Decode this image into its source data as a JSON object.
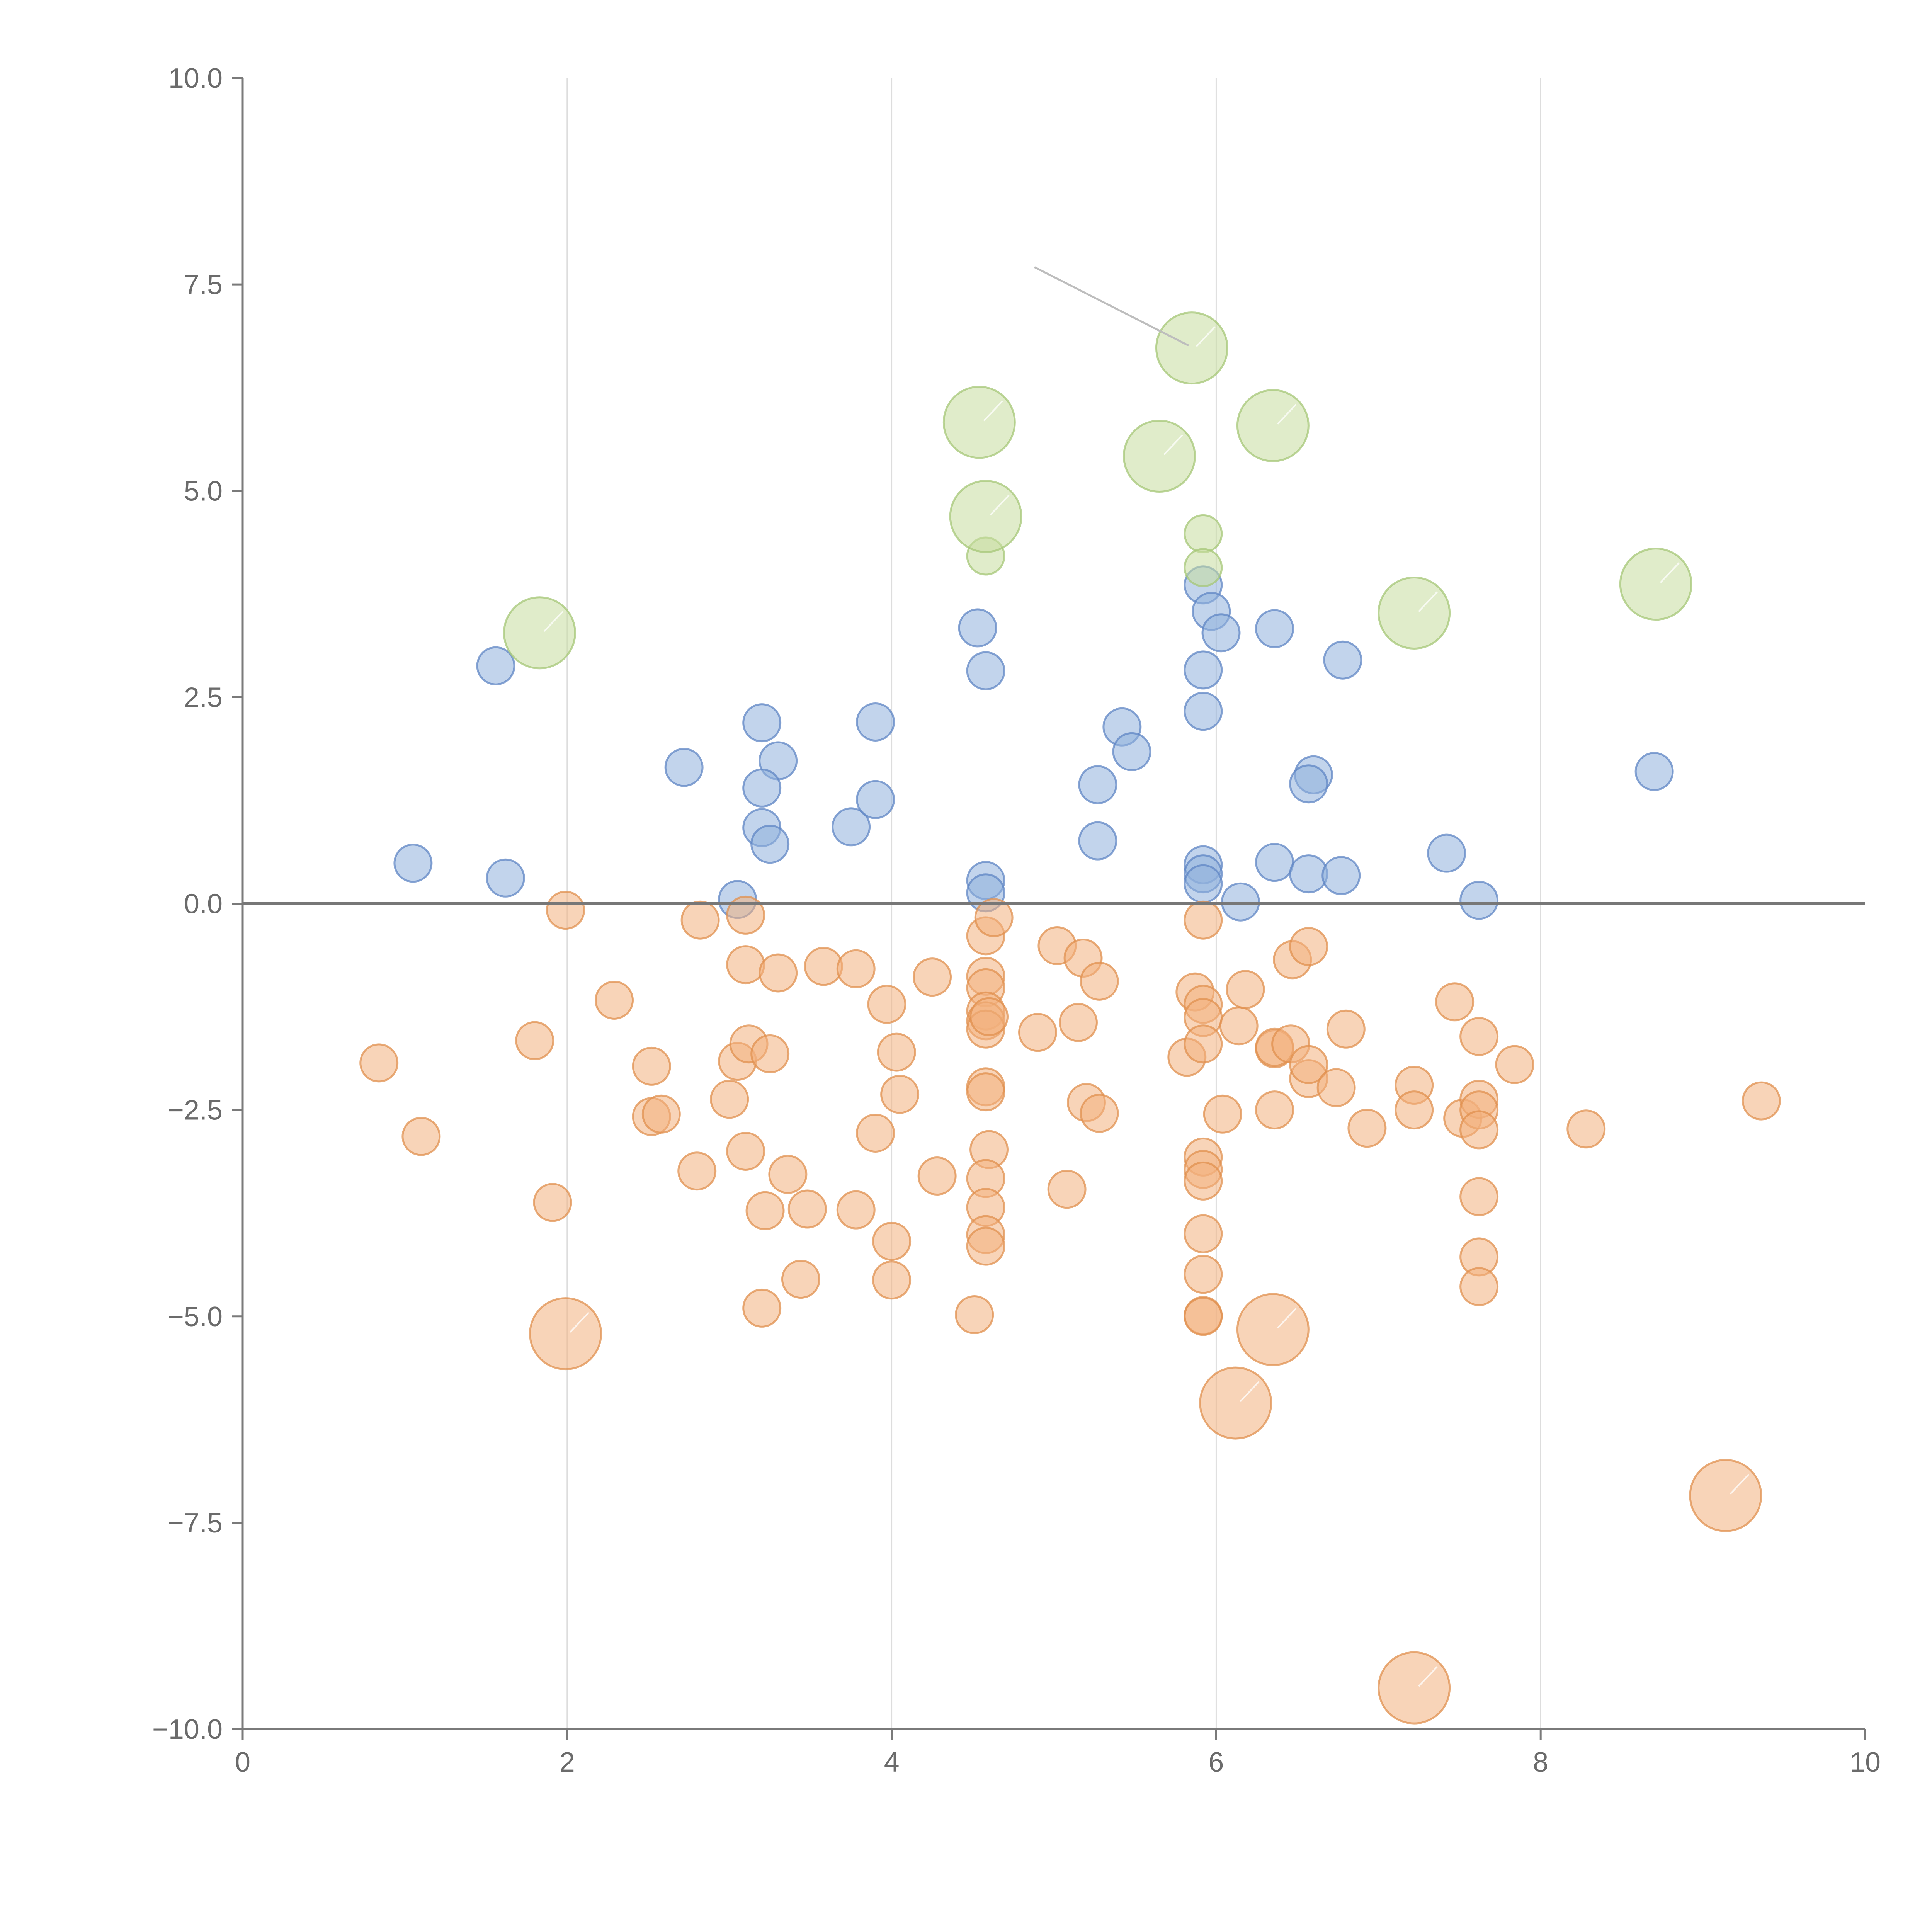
{
  "colors": {
    "blue_fill": "#8fb0dc",
    "blue_stroke": "#5f86c4",
    "orange_fill": "#f2b07d",
    "orange_stroke": "#e0904f",
    "green_fill": "#c7dd9e",
    "green_stroke": "#a6c777",
    "axis": "#7a7a7a",
    "grid": "#dddddd",
    "text": "#6b6b6b"
  },
  "chart_data": {
    "type": "scatter",
    "title": "",
    "xlabel": "",
    "ylabel": "",
    "xlim": [
      0,
      10
    ],
    "ylim": [
      -10,
      10
    ],
    "grid": "vertical",
    "legend": "none",
    "x_ticks": [
      "0",
      "2",
      "4",
      "6",
      "8",
      "10"
    ],
    "y_ticks": [
      "10.0",
      "7.5",
      "5.0",
      "2.5",
      "0.0",
      "−2.5",
      "−5.0",
      "−7.5",
      "−10.0"
    ],
    "series": [
      {
        "color_key": "blue",
        "points": [
          [
            1.05,
            0.49
          ],
          [
            1.62,
            0.31
          ],
          [
            1.56,
            2.88
          ],
          [
            2.72,
            1.65
          ],
          [
            3.05,
            0.05
          ],
          [
            3.2,
            2.19
          ],
          [
            3.3,
            1.73
          ],
          [
            3.2,
            1.4
          ],
          [
            3.2,
            0.92
          ],
          [
            3.25,
            0.72
          ],
          [
            3.75,
            0.93
          ],
          [
            3.9,
            1.26
          ],
          [
            3.9,
            2.2
          ],
          [
            4.53,
            3.34
          ],
          [
            4.58,
            2.82
          ],
          [
            4.58,
            0.28
          ],
          [
            4.58,
            0.13
          ],
          [
            5.27,
            1.44
          ],
          [
            5.27,
            0.76
          ],
          [
            5.42,
            2.14
          ],
          [
            5.48,
            1.84
          ],
          [
            5.92,
            3.86
          ],
          [
            5.97,
            3.54
          ],
          [
            6.03,
            3.28
          ],
          [
            5.92,
            2.83
          ],
          [
            5.92,
            2.33
          ],
          [
            5.92,
            0.47
          ],
          [
            5.92,
            0.36
          ],
          [
            5.92,
            0.24
          ],
          [
            6.15,
            0.02
          ],
          [
            6.36,
            3.33
          ],
          [
            6.36,
            0.5
          ],
          [
            6.57,
            0.36
          ],
          [
            6.6,
            1.56
          ],
          [
            6.57,
            1.45
          ],
          [
            6.78,
            2.95
          ],
          [
            6.77,
            0.34
          ],
          [
            7.42,
            0.61
          ],
          [
            7.62,
            0.04
          ],
          [
            8.7,
            1.6
          ]
        ],
        "size": "small"
      },
      {
        "color_key": "orange",
        "points": [
          [
            0.84,
            -1.93
          ],
          [
            1.1,
            -2.82
          ],
          [
            1.8,
            -1.66
          ],
          [
            1.91,
            -3.62
          ],
          [
            1.99,
            -0.08
          ],
          [
            2.29,
            -1.17
          ],
          [
            2.52,
            -1.97
          ],
          [
            2.52,
            -2.58
          ],
          [
            2.58,
            -2.55
          ],
          [
            2.8,
            -3.24
          ],
          [
            2.82,
            -0.2
          ],
          [
            3.0,
            -2.37
          ],
          [
            3.05,
            -1.91
          ],
          [
            3.1,
            -0.74
          ],
          [
            3.1,
            -0.14
          ],
          [
            3.1,
            -3.0
          ],
          [
            3.12,
            -1.7
          ],
          [
            3.2,
            -4.9
          ],
          [
            3.22,
            -3.72
          ],
          [
            3.25,
            -1.82
          ],
          [
            3.3,
            -0.84
          ],
          [
            3.36,
            -3.28
          ],
          [
            3.44,
            -4.55
          ],
          [
            3.48,
            -3.7
          ],
          [
            3.58,
            -0.76
          ],
          [
            3.78,
            -0.79
          ],
          [
            3.78,
            -3.71
          ],
          [
            3.9,
            -2.78
          ],
          [
            3.97,
            -1.22
          ],
          [
            4.0,
            -4.09
          ],
          [
            4.0,
            -4.56
          ],
          [
            4.03,
            -1.8
          ],
          [
            4.05,
            -2.31
          ],
          [
            4.25,
            -0.89
          ],
          [
            4.28,
            -3.3
          ],
          [
            4.51,
            -4.98
          ],
          [
            4.58,
            -0.39
          ],
          [
            4.58,
            -0.88
          ],
          [
            4.58,
            -1.02
          ],
          [
            4.58,
            -1.3
          ],
          [
            4.58,
            -1.42
          ],
          [
            4.58,
            -1.52
          ],
          [
            4.6,
            -1.37
          ],
          [
            4.58,
            -2.22
          ],
          [
            4.58,
            -2.28
          ],
          [
            4.6,
            -2.98
          ],
          [
            4.58,
            -3.33
          ],
          [
            4.58,
            -3.68
          ],
          [
            4.58,
            -4.01
          ],
          [
            4.58,
            -4.15
          ],
          [
            4.63,
            -0.17
          ],
          [
            4.9,
            -1.56
          ],
          [
            5.02,
            -0.51
          ],
          [
            5.08,
            -3.46
          ],
          [
            5.15,
            -1.44
          ],
          [
            5.18,
            -0.66
          ],
          [
            5.2,
            -2.41
          ],
          [
            5.28,
            -0.94
          ],
          [
            5.28,
            -2.54
          ],
          [
            5.82,
            -1.86
          ],
          [
            5.87,
            -1.07
          ],
          [
            5.92,
            -0.2
          ],
          [
            5.92,
            -1.22
          ],
          [
            5.92,
            -1.38
          ],
          [
            5.92,
            -1.7
          ],
          [
            5.92,
            -3.07
          ],
          [
            5.92,
            -3.22
          ],
          [
            5.92,
            -3.36
          ],
          [
            5.92,
            -4.0
          ],
          [
            5.92,
            -4.49
          ],
          [
            5.92,
            -4.99
          ],
          [
            5.92,
            -5.0
          ],
          [
            6.04,
            -2.55
          ],
          [
            6.14,
            -1.48
          ],
          [
            6.18,
            -1.04
          ],
          [
            6.36,
            -1.76
          ],
          [
            6.36,
            -1.74
          ],
          [
            6.36,
            -2.5
          ],
          [
            6.46,
            -1.7
          ],
          [
            6.47,
            -0.68
          ],
          [
            6.57,
            -0.52
          ],
          [
            6.57,
            -2.12
          ],
          [
            6.57,
            -1.95
          ],
          [
            6.74,
            -2.23
          ],
          [
            6.8,
            -1.52
          ],
          [
            6.93,
            -2.72
          ],
          [
            7.22,
            -2.2
          ],
          [
            7.22,
            -2.5
          ],
          [
            7.47,
            -1.19
          ],
          [
            7.52,
            -2.6
          ],
          [
            7.62,
            -2.37
          ],
          [
            7.62,
            -2.5
          ],
          [
            7.62,
            -1.61
          ],
          [
            7.62,
            -2.74
          ],
          [
            7.62,
            -3.55
          ],
          [
            7.62,
            -4.28
          ],
          [
            7.62,
            -4.64
          ],
          [
            7.84,
            -1.95
          ],
          [
            8.28,
            -2.73
          ],
          [
            9.36,
            -2.39
          ]
        ],
        "size": "small"
      },
      {
        "color_key": "orange",
        "points": [
          [
            1.99,
            -5.21
          ],
          [
            6.35,
            -5.16
          ],
          [
            6.12,
            -6.05
          ],
          [
            9.14,
            -7.17
          ],
          [
            7.22,
            -9.5
          ]
        ],
        "size": "large"
      },
      {
        "color_key": "green",
        "points": [
          [
            5.92,
            4.48
          ],
          [
            5.92,
            4.07
          ],
          [
            4.58,
            4.21
          ]
        ],
        "size": "small"
      },
      {
        "color_key": "green",
        "points": [
          [
            1.83,
            3.28
          ],
          [
            4.54,
            5.83
          ],
          [
            4.58,
            4.69
          ],
          [
            5.65,
            5.42
          ],
          [
            5.85,
            6.73
          ],
          [
            6.35,
            5.79
          ],
          [
            7.22,
            3.52
          ],
          [
            8.71,
            3.87
          ]
        ],
        "size": "large"
      }
    ],
    "annotation_leaders": [
      {
        "from": [
          4.88,
          7.71
        ],
        "to": [
          5.83,
          6.76
        ]
      }
    ]
  }
}
